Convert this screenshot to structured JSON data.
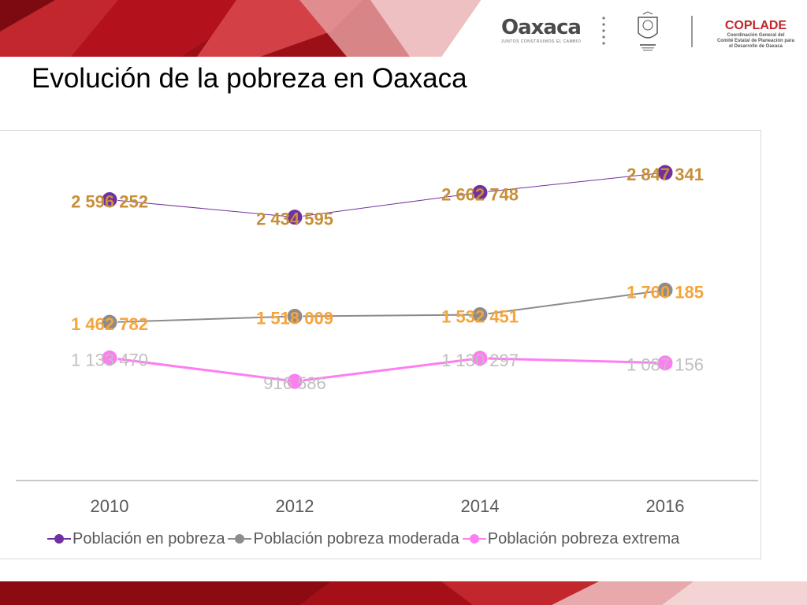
{
  "header": {
    "title": "Evolución de la pobreza en Oaxaca",
    "logo_oaxaca": {
      "word": "Oaxaca",
      "tagline": "JUNTOS CONSTRUIMOS EL CAMBIO"
    },
    "logo_coplade": {
      "word": "COPLADE",
      "sub1": "Coordinación General del",
      "sub2": "Comité Estatal de Planeación para",
      "sub3": "el Desarrollo de Oaxaca"
    }
  },
  "chart_data": {
    "type": "line",
    "x": [
      "2010",
      "2012",
      "2014",
      "2016"
    ],
    "series": [
      {
        "name": "Población en pobreza",
        "values": [
          2596252,
          2434595,
          2662748,
          2847341
        ],
        "labels": [
          "2 596 252",
          "2 434 595",
          "2 662 748",
          "2 847 341"
        ],
        "color": "#7030a0",
        "label_color": "#c78f37",
        "line_width": "thin"
      },
      {
        "name": "Población pobreza moderada",
        "values": [
          1462782,
          1518009,
          1532451,
          1760185
        ],
        "labels": [
          "1 462 782",
          "1 518 009",
          "1 532 451",
          "1 760 185"
        ],
        "color": "#8c8c8c",
        "label_color": "#f5a43c",
        "line_width": "medium"
      },
      {
        "name": "Población pobreza extrema",
        "values": [
          1133470,
          916586,
          1130297,
          1087156
        ],
        "labels": [
          "1 133 470",
          "916 586",
          "1 130 297",
          "1 087 156"
        ],
        "color": "#ff7df2",
        "label_color": "#bfbfbf",
        "line_width": "thick"
      }
    ],
    "ylim": [
      0,
      3200000
    ],
    "grid": false,
    "legend_position": "bottom",
    "title": "",
    "xlabel": "",
    "ylabel": ""
  }
}
